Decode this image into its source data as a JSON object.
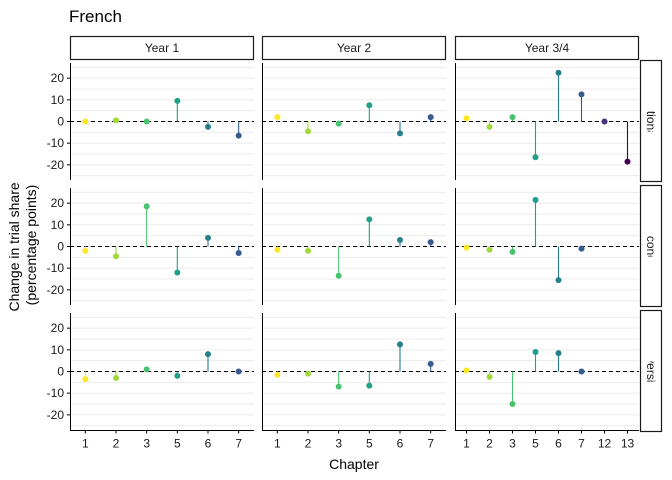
{
  "chart_data": {
    "type": "scatter",
    "title": "French",
    "xlabel": "Chapter",
    "ylabel": [
      "Change in trial share",
      "(percentage points)"
    ],
    "ylim": [
      -27,
      27
    ],
    "yticks": [
      -20,
      -10,
      0,
      10,
      20
    ],
    "grid": true,
    "legend": "none",
    "colors": {
      "1": "#FDE725",
      "2": "#A0DA39",
      "3": "#4AC16D",
      "5": "#1FA187",
      "6": "#277F8E",
      "7": "#365C8D",
      "12": "#46327E",
      "13": "#440154"
    },
    "columns": [
      {
        "label": "Year 1",
        "chapters": [
          "1",
          "2",
          "3",
          "5",
          "6",
          "7"
        ]
      },
      {
        "label": "Year 2",
        "chapters": [
          "1",
          "2",
          "3",
          "5",
          "6",
          "7"
        ]
      },
      {
        "label": "Year 3/4",
        "chapters": [
          "1",
          "2",
          "3",
          "5",
          "6",
          "7",
          "12",
          "13"
        ]
      }
    ],
    "rows": [
      {
        "label": "Pre-vocational (vmbo)",
        "strip_text": "Pre-vocational (vmbo)"
      },
      {
        "label": "General secondary (havo)",
        "strip_text": "General secondary (havo)"
      },
      {
        "label": "Pre-university (vwo)",
        "strip_text": "Pre-university (vwo)"
      }
    ],
    "panels": [
      {
        "row": 0,
        "col": 0,
        "points": [
          {
            "x": "1",
            "y": 0
          },
          {
            "x": "2",
            "y": 0.5
          },
          {
            "x": "3",
            "y": 0
          },
          {
            "x": "5",
            "y": 9.5
          },
          {
            "x": "6",
            "y": -2.5
          },
          {
            "x": "7",
            "y": -6.5
          }
        ]
      },
      {
        "row": 0,
        "col": 1,
        "points": [
          {
            "x": "1",
            "y": 2
          },
          {
            "x": "2",
            "y": -4.5
          },
          {
            "x": "3",
            "y": -1
          },
          {
            "x": "5",
            "y": 7.5
          },
          {
            "x": "6",
            "y": -5.5
          },
          {
            "x": "7",
            "y": 2
          }
        ]
      },
      {
        "row": 0,
        "col": 2,
        "points": [
          {
            "x": "1",
            "y": 1.5
          },
          {
            "x": "2",
            "y": -2.5
          },
          {
            "x": "3",
            "y": 2
          },
          {
            "x": "5",
            "y": -16.5
          },
          {
            "x": "6",
            "y": 22.5
          },
          {
            "x": "7",
            "y": 12.5
          },
          {
            "x": "12",
            "y": 0
          },
          {
            "x": "13",
            "y": -18.5
          }
        ]
      },
      {
        "row": 1,
        "col": 0,
        "points": [
          {
            "x": "1",
            "y": -2
          },
          {
            "x": "2",
            "y": -4.5
          },
          {
            "x": "3",
            "y": 18.5
          },
          {
            "x": "5",
            "y": -12
          },
          {
            "x": "6",
            "y": 4
          },
          {
            "x": "7",
            "y": -3
          }
        ]
      },
      {
        "row": 1,
        "col": 1,
        "points": [
          {
            "x": "1",
            "y": -1.5
          },
          {
            "x": "2",
            "y": -2
          },
          {
            "x": "3",
            "y": -13.5
          },
          {
            "x": "5",
            "y": 12.5
          },
          {
            "x": "6",
            "y": 3
          },
          {
            "x": "7",
            "y": 2
          }
        ]
      },
      {
        "row": 1,
        "col": 2,
        "points": [
          {
            "x": "1",
            "y": -0.5
          },
          {
            "x": "2",
            "y": -1.5
          },
          {
            "x": "3",
            "y": -2.5
          },
          {
            "x": "5",
            "y": 21.5
          },
          {
            "x": "6",
            "y": -15.5
          },
          {
            "x": "7",
            "y": -1
          }
        ]
      },
      {
        "row": 2,
        "col": 0,
        "points": [
          {
            "x": "1",
            "y": -3.5
          },
          {
            "x": "2",
            "y": -3
          },
          {
            "x": "3",
            "y": 1
          },
          {
            "x": "5",
            "y": -2
          },
          {
            "x": "6",
            "y": 8
          },
          {
            "x": "7",
            "y": 0
          }
        ]
      },
      {
        "row": 2,
        "col": 1,
        "points": [
          {
            "x": "1",
            "y": -1.5
          },
          {
            "x": "2",
            "y": -1
          },
          {
            "x": "3",
            "y": -7
          },
          {
            "x": "5",
            "y": -6.5
          },
          {
            "x": "6",
            "y": 12.5
          },
          {
            "x": "7",
            "y": 3.5
          }
        ]
      },
      {
        "row": 2,
        "col": 2,
        "points": [
          {
            "x": "1",
            "y": 0.5
          },
          {
            "x": "2",
            "y": -2.5
          },
          {
            "x": "3",
            "y": -15
          },
          {
            "x": "5",
            "y": 9
          },
          {
            "x": "6",
            "y": 8.5
          },
          {
            "x": "7",
            "y": 0
          }
        ]
      }
    ]
  }
}
